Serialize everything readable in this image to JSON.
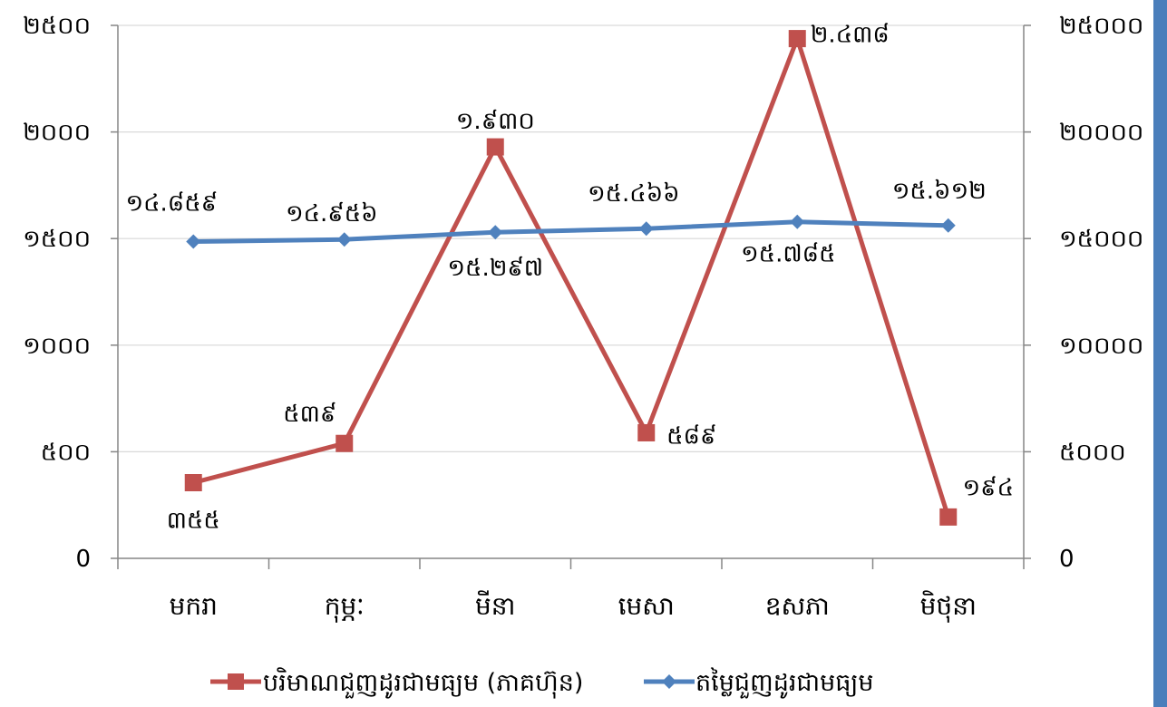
{
  "chart_data": {
    "type": "line",
    "categories": [
      "មករា",
      "កុម្ភៈ",
      "មីនា",
      "មេសា",
      "ឧសភា",
      "មិថុនា"
    ],
    "y_left": {
      "ylim": [
        0,
        2500
      ],
      "ticks": [
        0,
        500,
        1000,
        1500,
        2000,
        2500
      ],
      "tick_labels": [
        "0",
        "៥០០",
        "១០០០",
        "១៥០០",
        "២០០០",
        "២៥០០"
      ]
    },
    "y_right": {
      "ylim": [
        0,
        25000
      ],
      "ticks": [
        0,
        5000,
        10000,
        15000,
        20000,
        25000
      ],
      "tick_labels": [
        "0",
        "៥០០០",
        "១០០០០",
        "១៥០០០",
        "២០០០០",
        "២៥០០០"
      ]
    },
    "grid": true,
    "legend_position": "bottom",
    "series": [
      {
        "name": "បរិមាណជួញដូរជាមធ្យម (ភាគហ៊ុន)",
        "axis": "left",
        "color": "#C0504D",
        "marker": "square",
        "values": [
          355,
          539,
          1930,
          589,
          2438,
          194
        ],
        "labels": [
          "៣៥៥",
          "៥៣៩",
          "១.៩៣០",
          "៥៨៩",
          "២.៤៣៨",
          "១៩៤"
        ]
      },
      {
        "name": "តម្លៃជួញដូរជាមធ្យម",
        "axis": "right",
        "color": "#4F81BD",
        "marker": "diamond",
        "values": [
          14859,
          14956,
          15297,
          15466,
          15785,
          15612
        ],
        "labels": [
          "១៤.៨៥៩",
          "១៤.៩៥៦",
          "១៥.២៩៧",
          "១៥.៤៦៦",
          "១៥.៧៨៥",
          "១៥.៦១២"
        ]
      }
    ]
  }
}
